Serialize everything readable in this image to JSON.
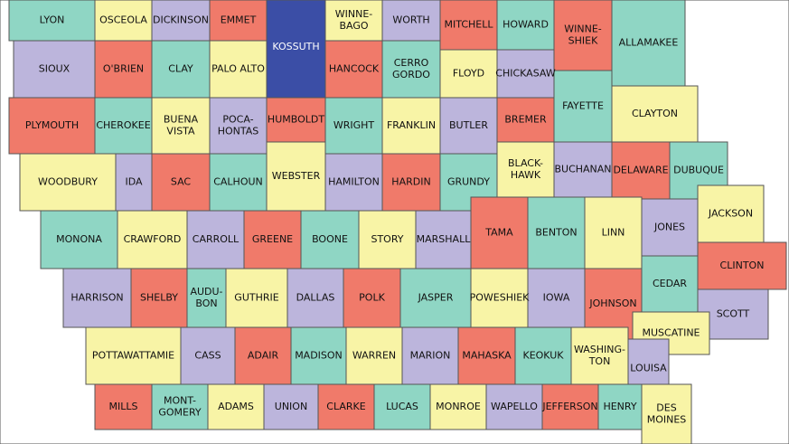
{
  "map": {
    "regions": [
      {
        "lines": [
          "LYON"
        ],
        "color": "#8fd6c4"
      },
      {
        "lines": [
          "OSCEOLA"
        ],
        "color": "#f8f4a6"
      },
      {
        "lines": [
          "DICKINSON"
        ],
        "color": "#bcb5dc"
      },
      {
        "lines": [
          "EMMET"
        ],
        "color": "#f07a6a"
      },
      {
        "lines": [
          "KOSSUTH"
        ],
        "color": "#3b4ea6"
      },
      {
        "lines": [
          "WINNE-",
          "BAGO"
        ],
        "color": "#f8f4a6"
      },
      {
        "lines": [
          "WORTH"
        ],
        "color": "#bcb5dc"
      },
      {
        "lines": [
          "MITCHELL"
        ],
        "color": "#f07a6a"
      },
      {
        "lines": [
          "HOWARD"
        ],
        "color": "#8fd6c4"
      },
      {
        "lines": [
          "WINNE-",
          "SHIEK"
        ],
        "color": "#f07a6a"
      },
      {
        "lines": [
          "ALLAMAKEE"
        ],
        "color": "#8fd6c4"
      },
      {
        "lines": [
          "SIOUX"
        ],
        "color": "#bcb5dc"
      },
      {
        "lines": [
          "O'BRIEN"
        ],
        "color": "#f07a6a"
      },
      {
        "lines": [
          "CLAY"
        ],
        "color": "#8fd6c4"
      },
      {
        "lines": [
          "PALO ALTO"
        ],
        "color": "#f8f4a6"
      },
      {
        "lines": [
          "HANCOCK"
        ],
        "color": "#f07a6a"
      },
      {
        "lines": [
          "CERRO",
          "GORDO"
        ],
        "color": "#8fd6c4"
      },
      {
        "lines": [
          "FLOYD"
        ],
        "color": "#f8f4a6"
      },
      {
        "lines": [
          "CHICKASAW"
        ],
        "color": "#bcb5dc"
      },
      {
        "lines": [
          "PLYMOUTH"
        ],
        "color": "#f07a6a"
      },
      {
        "lines": [
          "CHEROKEE"
        ],
        "color": "#8fd6c4"
      },
      {
        "lines": [
          "BUENA",
          "VISTA"
        ],
        "color": "#f8f4a6"
      },
      {
        "lines": [
          "POCA-",
          "HONTAS"
        ],
        "color": "#bcb5dc"
      },
      {
        "lines": [
          "HUMBOLDT"
        ],
        "color": "#f07a6a"
      },
      {
        "lines": [
          "WRIGHT"
        ],
        "color": "#8fd6c4"
      },
      {
        "lines": [
          "FRANKLIN"
        ],
        "color": "#f8f4a6"
      },
      {
        "lines": [
          "BUTLER"
        ],
        "color": "#bcb5dc"
      },
      {
        "lines": [
          "BREMER"
        ],
        "color": "#f07a6a"
      },
      {
        "lines": [
          "FAYETTE"
        ],
        "color": "#8fd6c4"
      },
      {
        "lines": [
          "CLAYTON"
        ],
        "color": "#f8f4a6"
      },
      {
        "lines": [
          "WOODBURY"
        ],
        "color": "#f8f4a6"
      },
      {
        "lines": [
          "IDA"
        ],
        "color": "#bcb5dc"
      },
      {
        "lines": [
          "SAC"
        ],
        "color": "#f07a6a"
      },
      {
        "lines": [
          "CALHOUN"
        ],
        "color": "#8fd6c4"
      },
      {
        "lines": [
          "WEBSTER"
        ],
        "color": "#f8f4a6"
      },
      {
        "lines": [
          "HAMILTON"
        ],
        "color": "#bcb5dc"
      },
      {
        "lines": [
          "HARDIN"
        ],
        "color": "#f07a6a"
      },
      {
        "lines": [
          "GRUNDY"
        ],
        "color": "#8fd6c4"
      },
      {
        "lines": [
          "BLACK-",
          "HAWK"
        ],
        "color": "#f8f4a6"
      },
      {
        "lines": [
          "BUCHANAN"
        ],
        "color": "#bcb5dc"
      },
      {
        "lines": [
          "DELAWARE"
        ],
        "color": "#f07a6a"
      },
      {
        "lines": [
          "DUBUQUE"
        ],
        "color": "#8fd6c4"
      },
      {
        "lines": [
          "MONONA"
        ],
        "color": "#8fd6c4"
      },
      {
        "lines": [
          "CRAWFORD"
        ],
        "color": "#f8f4a6"
      },
      {
        "lines": [
          "CARROLL"
        ],
        "color": "#bcb5dc"
      },
      {
        "lines": [
          "GREENE"
        ],
        "color": "#f07a6a"
      },
      {
        "lines": [
          "BOONE"
        ],
        "color": "#8fd6c4"
      },
      {
        "lines": [
          "STORY"
        ],
        "color": "#f8f4a6"
      },
      {
        "lines": [
          "MARSHALL"
        ],
        "color": "#bcb5dc"
      },
      {
        "lines": [
          "TAMA"
        ],
        "color": "#f07a6a"
      },
      {
        "lines": [
          "BENTON"
        ],
        "color": "#8fd6c4"
      },
      {
        "lines": [
          "LINN"
        ],
        "color": "#f8f4a6"
      },
      {
        "lines": [
          "JONES"
        ],
        "color": "#bcb5dc"
      },
      {
        "lines": [
          "JACKSON"
        ],
        "color": "#f8f4a6"
      },
      {
        "lines": [
          "HARRISON"
        ],
        "color": "#bcb5dc"
      },
      {
        "lines": [
          "SHELBY"
        ],
        "color": "#f07a6a"
      },
      {
        "lines": [
          "AUDU-",
          "BON"
        ],
        "color": "#8fd6c4"
      },
      {
        "lines": [
          "GUTHRIE"
        ],
        "color": "#f8f4a6"
      },
      {
        "lines": [
          "DALLAS"
        ],
        "color": "#bcb5dc"
      },
      {
        "lines": [
          "POLK"
        ],
        "color": "#f07a6a"
      },
      {
        "lines": [
          "JASPER"
        ],
        "color": "#8fd6c4"
      },
      {
        "lines": [
          "POWESHIEK"
        ],
        "color": "#f8f4a6"
      },
      {
        "lines": [
          "IOWA"
        ],
        "color": "#bcb5dc"
      },
      {
        "lines": [
          "JOHNSON"
        ],
        "color": "#f07a6a"
      },
      {
        "lines": [
          "CEDAR"
        ],
        "color": "#8fd6c4"
      },
      {
        "lines": [
          "CLINTON"
        ],
        "color": "#f07a6a"
      },
      {
        "lines": [
          "SCOTT"
        ],
        "color": "#bcb5dc"
      },
      {
        "lines": [
          "MUSCATINE"
        ],
        "color": "#f8f4a6"
      },
      {
        "lines": [
          "POTTAWATTAMIE"
        ],
        "color": "#f8f4a6"
      },
      {
        "lines": [
          "CASS"
        ],
        "color": "#bcb5dc"
      },
      {
        "lines": [
          "ADAIR"
        ],
        "color": "#f07a6a"
      },
      {
        "lines": [
          "MADISON"
        ],
        "color": "#8fd6c4"
      },
      {
        "lines": [
          "WARREN"
        ],
        "color": "#f8f4a6"
      },
      {
        "lines": [
          "MARION"
        ],
        "color": "#bcb5dc"
      },
      {
        "lines": [
          "MAHASKA"
        ],
        "color": "#f07a6a"
      },
      {
        "lines": [
          "KEOKUK"
        ],
        "color": "#8fd6c4"
      },
      {
        "lines": [
          "WASHING-",
          "TON"
        ],
        "color": "#f8f4a6"
      },
      {
        "lines": [
          "LOUISA"
        ],
        "color": "#bcb5dc"
      },
      {
        "lines": [
          "MILLS"
        ],
        "color": "#f07a6a"
      },
      {
        "lines": [
          "MONT-",
          "GOMERY"
        ],
        "color": "#8fd6c4"
      },
      {
        "lines": [
          "ADAMS"
        ],
        "color": "#f8f4a6"
      },
      {
        "lines": [
          "UNION"
        ],
        "color": "#bcb5dc"
      },
      {
        "lines": [
          "CLARKE"
        ],
        "color": "#f07a6a"
      },
      {
        "lines": [
          "LUCAS"
        ],
        "color": "#8fd6c4"
      },
      {
        "lines": [
          "MONROE"
        ],
        "color": "#f8f4a6"
      },
      {
        "lines": [
          "WAPELLO"
        ],
        "color": "#bcb5dc"
      },
      {
        "lines": [
          "JEFFERSON"
        ],
        "color": "#f07a6a"
      },
      {
        "lines": [
          "HENRY"
        ],
        "color": "#8fd6c4"
      },
      {
        "lines": [
          "DES",
          "MOINES"
        ],
        "color": "#f8f4a6"
      }
    ]
  }
}
